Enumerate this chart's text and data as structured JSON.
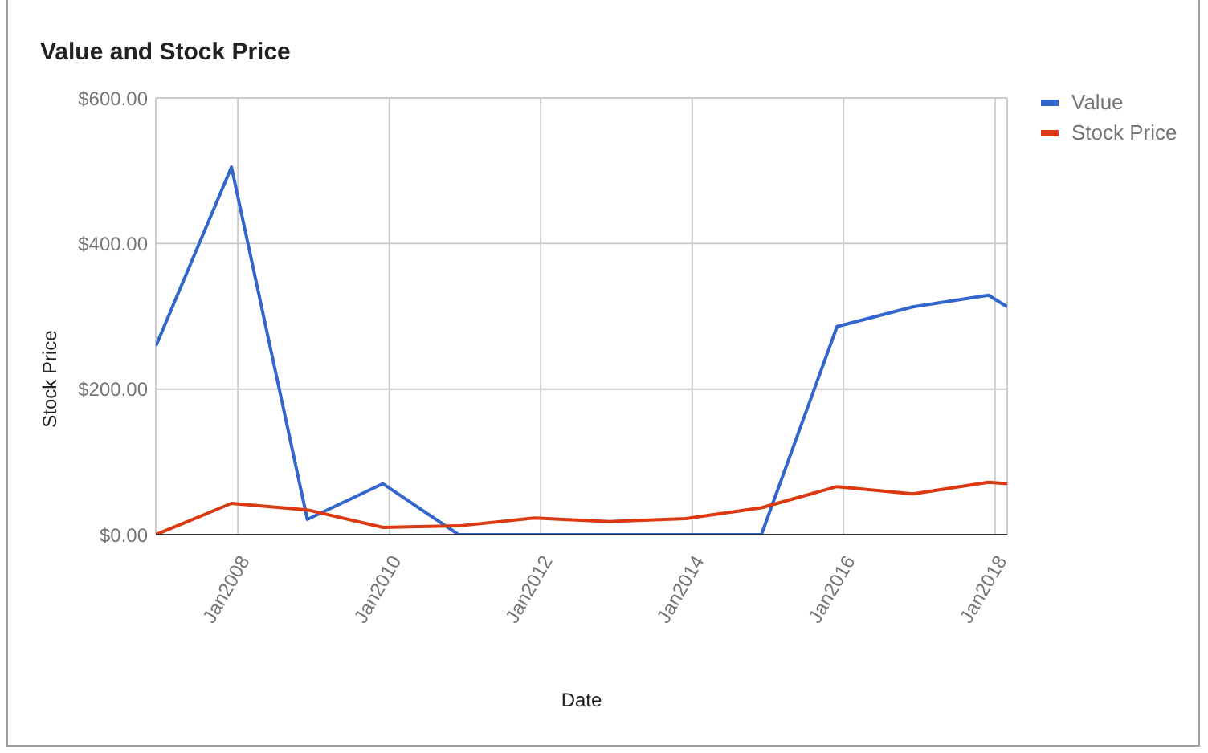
{
  "chart_data": {
    "type": "line",
    "title": "Value and Stock Price",
    "xlabel": "Date",
    "ylabel": "Stock Price",
    "x": [
      "2006-12",
      "2007-12",
      "2008-12",
      "2009-12",
      "2010-12",
      "2011-12",
      "2012-12",
      "2013-12",
      "2014-12",
      "2015-12",
      "2016-12",
      "2017-12",
      "2018-03"
    ],
    "series": [
      {
        "name": "Value",
        "color": "#3366cc",
        "values": [
          259,
          505,
          21,
          70,
          0,
          0,
          0,
          0,
          0,
          286,
          313,
          329,
          313
        ]
      },
      {
        "name": "Stock Price",
        "color": "#dc3912",
        "values": [
          0,
          43,
          34,
          10,
          12,
          23,
          18,
          22,
          37,
          66,
          56,
          72,
          70
        ]
      }
    ],
    "xlim": [
      "2006-12",
      "2018-03"
    ],
    "xticks": [
      {
        "value": "2008-01",
        "label": "Jan2008"
      },
      {
        "value": "2010-01",
        "label": "Jan2010"
      },
      {
        "value": "2012-01",
        "label": "Jan2012"
      },
      {
        "value": "2014-01",
        "label": "Jan2014"
      },
      {
        "value": "2016-01",
        "label": "Jan2016"
      },
      {
        "value": "2018-01",
        "label": "Jan2018"
      }
    ],
    "ylim": [
      0,
      600
    ],
    "yticks": [
      {
        "value": 0,
        "label": "$0.00"
      },
      {
        "value": 200,
        "label": "$200.00"
      },
      {
        "value": 400,
        "label": "$400.00"
      },
      {
        "value": 600,
        "label": "$600.00"
      }
    ],
    "grid": true,
    "legend": "right",
    "marker": "none"
  }
}
